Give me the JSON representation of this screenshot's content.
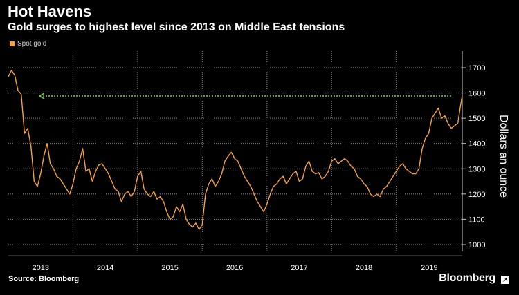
{
  "header": {
    "title": "Hot Havens",
    "subtitle": "Gold surges to highest level since 2013 on Middle East tensions"
  },
  "legend": {
    "label": "Spot gold"
  },
  "footer": {
    "source": "Source: Bloomberg",
    "brand": "Bloomberg"
  },
  "colors": {
    "series": "#f9a23a",
    "arrow": "#6fd44a",
    "grid": "#8a8a8a",
    "background": "#000000"
  },
  "chart_data": {
    "type": "line",
    "title": "Hot Havens",
    "subtitle": "Gold surges to highest level since 2013 on Middle East tensions",
    "xlabel": "",
    "ylabel": "Dollars an ounce",
    "ylim": [
      1000,
      1700
    ],
    "yticks": [
      1000,
      1100,
      1200,
      1300,
      1400,
      1500,
      1600,
      1700
    ],
    "xlim": [
      2013.0,
      2020.02
    ],
    "xticks": [
      "2013",
      "2014",
      "2015",
      "2016",
      "2017",
      "2018",
      "2019"
    ],
    "grid": true,
    "legend_position": "top-left",
    "annotation": {
      "type": "arrow",
      "value": 1588
    },
    "series": [
      {
        "name": "Spot gold",
        "x": [
          2013.0,
          2013.05,
          2013.1,
          2013.15,
          2013.2,
          2013.25,
          2013.3,
          2013.35,
          2013.4,
          2013.45,
          2013.5,
          2013.55,
          2013.6,
          2013.65,
          2013.7,
          2013.75,
          2013.8,
          2013.85,
          2013.9,
          2013.95,
          2014.0,
          2014.05,
          2014.1,
          2014.15,
          2014.2,
          2014.25,
          2014.3,
          2014.35,
          2014.4,
          2014.45,
          2014.5,
          2014.55,
          2014.6,
          2014.65,
          2014.7,
          2014.75,
          2014.8,
          2014.85,
          2014.9,
          2014.95,
          2015.0,
          2015.05,
          2015.1,
          2015.15,
          2015.2,
          2015.25,
          2015.3,
          2015.35,
          2015.4,
          2015.45,
          2015.5,
          2015.55,
          2015.6,
          2015.65,
          2015.7,
          2015.75,
          2015.8,
          2015.85,
          2015.9,
          2015.95,
          2016.0,
          2016.05,
          2016.1,
          2016.15,
          2016.2,
          2016.25,
          2016.3,
          2016.35,
          2016.4,
          2016.45,
          2016.5,
          2016.55,
          2016.6,
          2016.65,
          2016.7,
          2016.75,
          2016.8,
          2016.85,
          2016.9,
          2016.95,
          2017.0,
          2017.05,
          2017.1,
          2017.15,
          2017.2,
          2017.25,
          2017.3,
          2017.35,
          2017.4,
          2017.45,
          2017.5,
          2017.55,
          2017.6,
          2017.65,
          2017.7,
          2017.75,
          2017.8,
          2017.85,
          2017.9,
          2017.95,
          2018.0,
          2018.05,
          2018.1,
          2018.15,
          2018.2,
          2018.25,
          2018.3,
          2018.35,
          2018.4,
          2018.45,
          2018.5,
          2018.55,
          2018.6,
          2018.65,
          2018.7,
          2018.75,
          2018.8,
          2018.85,
          2018.9,
          2018.95,
          2019.0,
          2019.05,
          2019.1,
          2019.15,
          2019.2,
          2019.25,
          2019.3,
          2019.35,
          2019.4,
          2019.45,
          2019.5,
          2019.55,
          2019.6,
          2019.65,
          2019.7,
          2019.75,
          2019.8,
          2019.85,
          2019.9,
          2019.95,
          2020.0,
          2020.02
        ],
        "y": [
          1665,
          1690,
          1670,
          1610,
          1595,
          1440,
          1460,
          1390,
          1250,
          1230,
          1280,
          1350,
          1400,
          1320,
          1300,
          1270,
          1260,
          1240,
          1220,
          1200,
          1240,
          1300,
          1330,
          1380,
          1290,
          1300,
          1250,
          1290,
          1315,
          1320,
          1300,
          1280,
          1250,
          1220,
          1210,
          1170,
          1200,
          1210,
          1190,
          1210,
          1270,
          1290,
          1220,
          1200,
          1190,
          1210,
          1180,
          1190,
          1170,
          1130,
          1100,
          1110,
          1150,
          1130,
          1160,
          1100,
          1080,
          1070,
          1085,
          1060,
          1080,
          1200,
          1240,
          1260,
          1230,
          1250,
          1280,
          1330,
          1350,
          1365,
          1340,
          1330,
          1300,
          1270,
          1250,
          1230,
          1200,
          1170,
          1150,
          1130,
          1160,
          1200,
          1230,
          1240,
          1260,
          1270,
          1240,
          1260,
          1280,
          1290,
          1250,
          1260,
          1310,
          1330,
          1290,
          1280,
          1285,
          1260,
          1270,
          1290,
          1330,
          1340,
          1320,
          1330,
          1340,
          1330,
          1310,
          1300,
          1270,
          1260,
          1240,
          1230,
          1200,
          1190,
          1200,
          1190,
          1220,
          1230,
          1250,
          1270,
          1290,
          1310,
          1320,
          1300,
          1290,
          1280,
          1280,
          1300,
          1380,
          1420,
          1440,
          1500,
          1520,
          1540,
          1500,
          1510,
          1480,
          1460,
          1470,
          1480,
          1560,
          1588
        ]
      }
    ]
  }
}
